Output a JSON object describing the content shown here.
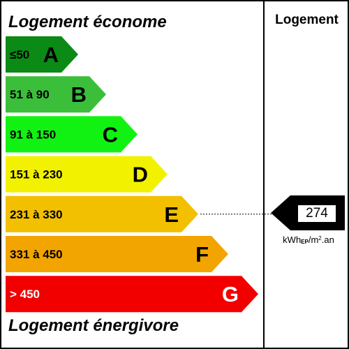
{
  "titles": {
    "top": "Logement économe",
    "bottom": "Logement énergivore"
  },
  "column_header": "Logement",
  "classes": [
    {
      "letter": "A",
      "range": "≤50",
      "color": "#0c8a16"
    },
    {
      "letter": "B",
      "range": "51 à 90",
      "color": "#3bbf3b"
    },
    {
      "letter": "C",
      "range": "91 à 150",
      "color": "#12f212"
    },
    {
      "letter": "D",
      "range": "151 à 230",
      "color": "#f2f200"
    },
    {
      "letter": "E",
      "range": "231 à 330",
      "color": "#f2c000"
    },
    {
      "letter": "F",
      "range": "331 à 450",
      "color": "#f2a500"
    },
    {
      "letter": "G",
      "range": "> 450",
      "color": "#f20000"
    }
  ],
  "indicator": {
    "value": "274",
    "class": "E",
    "unit_main": "kWh",
    "unit_sub": "EP",
    "unit_rest": "/m",
    "unit_sup": "2",
    "unit_end": ".an"
  }
}
